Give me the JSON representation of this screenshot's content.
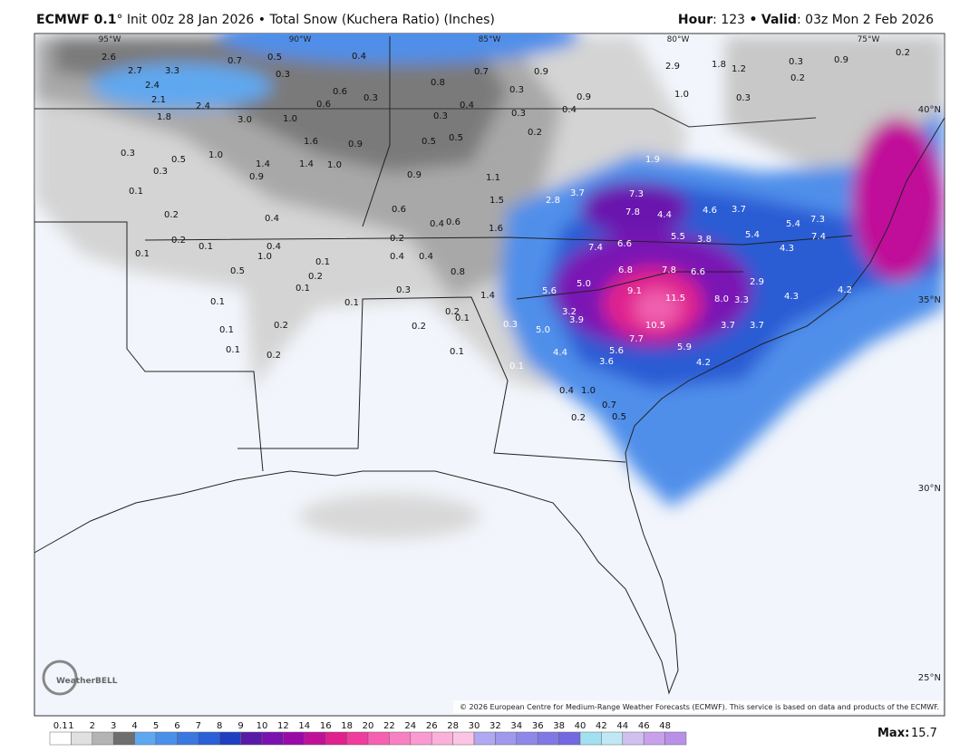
{
  "header": {
    "model": "ECMWF 0.1",
    "degree": "°",
    "init": "Init 00z 28 Jan 2026",
    "bullet": "•",
    "product": "Total Snow (Kuchera Ratio) (Inches)",
    "hour_label": "Hour",
    "hour": ": 123",
    "bullet2": "•",
    "valid_label": "Valid",
    "valid": ": 03z Mon 2 Feb 2026"
  },
  "map": {
    "lat_labels": [
      "40°N",
      "35°N",
      "30°N",
      "25°N"
    ],
    "lon_labels": [
      "95°W",
      "90°W",
      "85°W",
      "80°W",
      "75°W"
    ],
    "values": [
      "2.6",
      "2.7",
      "3.3",
      "2.4",
      "2.1",
      "2.4",
      "1.8",
      "3.0",
      "1.0",
      "1.6",
      "1.4",
      "1.0",
      "0.9",
      "0.5",
      "0.7",
      "0.4",
      "0.3",
      "0.6",
      "0.6",
      "0.3",
      "0.8",
      "0.7",
      "0.4",
      "0.3",
      "0.5",
      "0.5",
      "0.3",
      "0.2",
      "0.9",
      "0.3",
      "0.4",
      "0.9",
      "2.9",
      "1.8",
      "1.2",
      "1.0",
      "0.3",
      "0.3",
      "0.2",
      "0.9",
      "0.2",
      "1.9",
      "2.8",
      "3.7",
      "7.3",
      "7.8",
      "4.4",
      "4.6",
      "3.7",
      "5.4",
      "7.3",
      "7.4",
      "5.5",
      "3.8",
      "5.4",
      "4.3",
      "7.4",
      "6.6",
      "6.8",
      "7.8",
      "6.6",
      "2.9",
      "5.6",
      "5.0",
      "9.1",
      "11.5",
      "8.0",
      "3.3",
      "4.3",
      "4.2",
      "3.2",
      "3.9",
      "10.5",
      "3.7",
      "3.7",
      "5.0",
      "7.7",
      "5.6",
      "5.9",
      "4.4",
      "3.6",
      "4.2",
      "0.1",
      "0.4",
      "1.0",
      "0.7",
      "0.5",
      "0.2",
      "0.1",
      "0.2",
      "0.3",
      "0.2",
      "0.1",
      "0.3",
      "0.8",
      "1.4",
      "0.4",
      "0.4",
      "0.2",
      "0.4",
      "0.6",
      "0.6",
      "0.9",
      "1.6",
      "1.5",
      "1.1",
      "0.1",
      "0.2",
      "0.1",
      "0.1",
      "0.2",
      "0.2",
      "0.1",
      "0.1",
      "0.1",
      "0.5",
      "1.0",
      "0.4",
      "0.1",
      "0.2",
      "0.1",
      "0.2",
      "0.1",
      "0.3",
      "0.5",
      "1.0",
      "1.4",
      "0.9",
      "0.4",
      "0.3"
    ],
    "logo": "WeatherBELL",
    "copyright": "© 2026 European Centre for Medium-Range Weather Forecasts (ECMWF). This service is based on data and products of the ECMWF."
  },
  "colorbar": {
    "ticks": [
      "0.1",
      "1",
      "2",
      "3",
      "4",
      "5",
      "6",
      "7",
      "8",
      "9",
      "10",
      "12",
      "14",
      "16",
      "18",
      "20",
      "22",
      "24",
      "26",
      "28",
      "30",
      "32",
      "34",
      "36",
      "38",
      "40",
      "42",
      "44",
      "46",
      "48"
    ],
    "colors": [
      "#ffffff",
      "#e0e0e0",
      "#b4b4b4",
      "#6e6e6e",
      "#5fa8f0",
      "#4a90ea",
      "#3a78e0",
      "#2a5fd8",
      "#1e3fc0",
      "#5a1aa8",
      "#7a12b0",
      "#9a0aa8",
      "#c0109a",
      "#e0208e",
      "#f03c9c",
      "#f560b0",
      "#f880c2",
      "#fa9ad0",
      "#fbb0da",
      "#fcc4e4",
      "#b0a8f0",
      "#9f98ec",
      "#8e88e8",
      "#8078e4",
      "#7268e0",
      "#a0e0f0",
      "#c0e8f4",
      "#d0c0f0",
      "#c8a0ec",
      "#b890e8"
    ],
    "max_label": "Max:",
    "max": 15.7
  }
}
